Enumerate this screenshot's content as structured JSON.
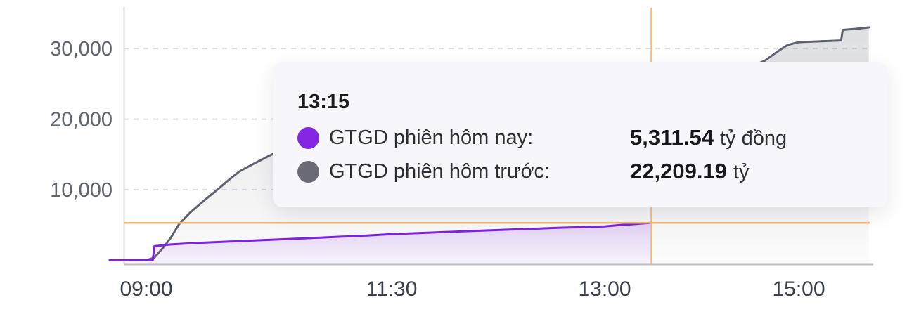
{
  "tooltip": {
    "time": "13:15",
    "rows": [
      {
        "label": "GTGD phiên hôm nay:",
        "value": "5,311.54",
        "unit": "tỷ đồng",
        "marker_color": "#8326e2"
      },
      {
        "label": "GTGD phiên hôm trước:",
        "value": "22,209.19",
        "unit": "tỷ",
        "marker_color": "#6b6b75"
      }
    ]
  },
  "colors": {
    "today_line": "#7d22e0",
    "prev_line": "#5d626e",
    "crosshair": "#f6bc7b",
    "grid": "#dddde3",
    "axis_left": "#d9d9e0",
    "axis_bottom": "#bdbec7",
    "y_label": "#606671",
    "x_label": "#3b414b",
    "tooltip_bg": "#f7f6fa"
  },
  "chart_data": {
    "type": "area",
    "title": "",
    "xlabel": "",
    "ylabel": "",
    "unit": "tỷ đồng",
    "grid": "dashed-horizontal",
    "x_axis": {
      "ticks": [
        "09:00",
        "11:30",
        "13:00",
        "15:00"
      ]
    },
    "y_axis": {
      "ticks": [
        10000,
        20000,
        30000
      ],
      "tick_labels": [
        "10,000",
        "20,000",
        "30,000"
      ],
      "range": [
        0,
        36000
      ]
    },
    "crosshair": {
      "time": "13:15",
      "value": 5311.54
    },
    "series": [
      {
        "name": "GTGD phiên hôm trước",
        "color": "#5d626e",
        "points": [
          [
            "09:00",
            0
          ],
          [
            "09:05",
            400
          ],
          [
            "09:10",
            1700
          ],
          [
            "09:15",
            3200
          ],
          [
            "09:20",
            5100
          ],
          [
            "09:27",
            6800
          ],
          [
            "09:35",
            8400
          ],
          [
            "09:44",
            10100
          ],
          [
            "09:50",
            11300
          ],
          [
            "09:57",
            12600
          ],
          [
            "10:05",
            13600
          ],
          [
            "10:16",
            14900
          ],
          [
            "10:30",
            16300
          ],
          [
            "10:45",
            17400
          ],
          [
            "11:00",
            18300
          ],
          [
            "11:15",
            19000
          ],
          [
            "11:30",
            19500
          ],
          [
            "12:15",
            19700
          ],
          [
            "13:00",
            20700
          ],
          [
            "13:15",
            22209.19
          ],
          [
            "13:45",
            24300
          ],
          [
            "14:15",
            26500
          ],
          [
            "14:36",
            28300
          ],
          [
            "14:45",
            29600
          ],
          [
            "14:52",
            30500
          ],
          [
            "15:00",
            30900
          ],
          [
            "15:10",
            31000
          ],
          [
            "15:26",
            31150
          ],
          [
            "15:27",
            32650
          ],
          [
            "15:35",
            32800
          ],
          [
            "15:43",
            33000
          ]
        ]
      },
      {
        "name": "GTGD phiên hôm nay",
        "color": "#7d22e0",
        "points": [
          [
            "08:45",
            0
          ],
          [
            "09:04",
            40
          ],
          [
            "09:05",
            2000
          ],
          [
            "09:15",
            2250
          ],
          [
            "09:30",
            2450
          ],
          [
            "09:45",
            2600
          ],
          [
            "10:00",
            2750
          ],
          [
            "10:15",
            2900
          ],
          [
            "10:30",
            3050
          ],
          [
            "10:45",
            3200
          ],
          [
            "11:00",
            3350
          ],
          [
            "11:15",
            3500
          ],
          [
            "11:30",
            3700
          ],
          [
            "11:45",
            3900
          ],
          [
            "12:00",
            4100
          ],
          [
            "12:20",
            4350
          ],
          [
            "12:40",
            4600
          ],
          [
            "13:00",
            4800
          ],
          [
            "13:05",
            5000
          ],
          [
            "13:10",
            5150
          ],
          [
            "13:15",
            5311.54
          ]
        ]
      }
    ]
  }
}
